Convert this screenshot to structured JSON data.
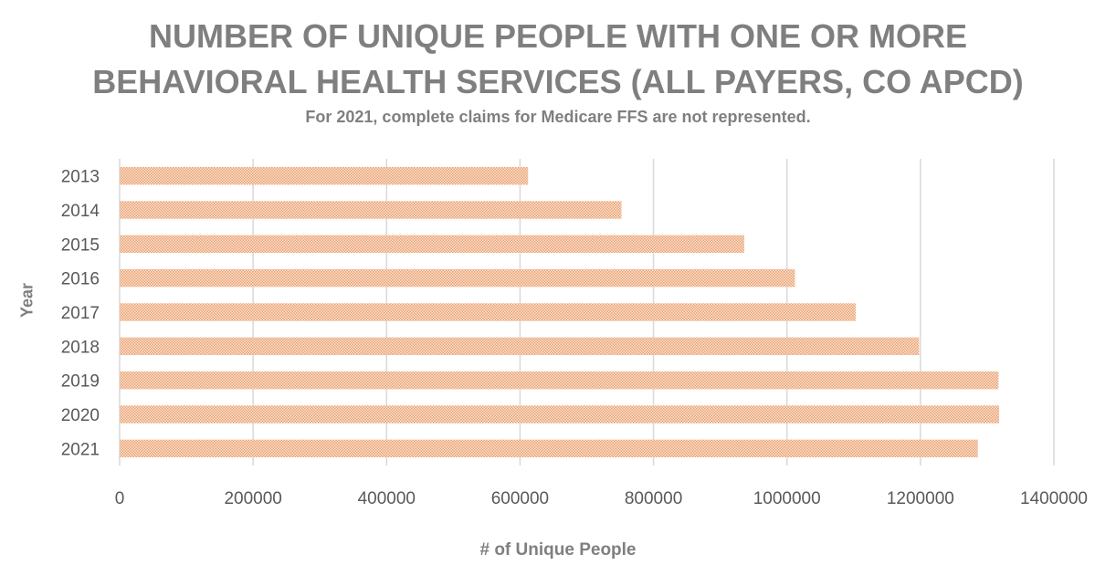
{
  "chart_data": {
    "type": "bar",
    "orientation": "horizontal",
    "title_lines": [
      "NUMBER OF UNIQUE PEOPLE WITH ONE OR MORE",
      "BEHAVIORAL HEALTH SERVICES (ALL PAYERS, CO APCD)"
    ],
    "subtitle": "For 2021, complete claims for Medicare FFS are not represented.",
    "xlabel": "# of Unique People",
    "ylabel": "Year",
    "categories": [
      "2013",
      "2014",
      "2015",
      "2016",
      "2017",
      "2018",
      "2019",
      "2020",
      "2021"
    ],
    "values": [
      612000,
      752000,
      936000,
      1012000,
      1103000,
      1198000,
      1317000,
      1318000,
      1286000
    ],
    "xlim": [
      0,
      1400000
    ],
    "xticks": [
      "0",
      "200000",
      "400000",
      "600000",
      "800000",
      "1000000",
      "1200000",
      "1400000"
    ],
    "grid": true,
    "bar_color": "#f4b183",
    "bar_pattern": "crosshatch"
  }
}
